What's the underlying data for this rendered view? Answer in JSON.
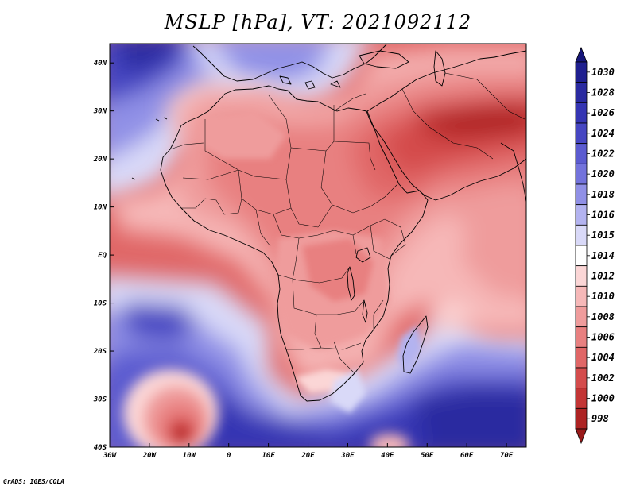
{
  "title": "MSLP [hPa], VT: 2021092112",
  "credit": "GrADS: IGES/COLA",
  "map": {
    "variable": "Mean sea level pressure",
    "units": "hPa",
    "valid_time": "2021092112",
    "lon_range": [
      -30,
      75
    ],
    "lat_range": [
      -40,
      44
    ],
    "lon_ticks": [
      {
        "value": -30,
        "label": "30W"
      },
      {
        "value": -20,
        "label": "20W"
      },
      {
        "value": -10,
        "label": "10W"
      },
      {
        "value": 0,
        "label": "0"
      },
      {
        "value": 10,
        "label": "10E"
      },
      {
        "value": 20,
        "label": "20E"
      },
      {
        "value": 30,
        "label": "30E"
      },
      {
        "value": 40,
        "label": "40E"
      },
      {
        "value": 50,
        "label": "50E"
      },
      {
        "value": 60,
        "label": "60E"
      },
      {
        "value": 70,
        "label": "70E"
      }
    ],
    "lat_ticks": [
      {
        "value": 40,
        "label": "40N"
      },
      {
        "value": 30,
        "label": "30N"
      },
      {
        "value": 20,
        "label": "20N"
      },
      {
        "value": 10,
        "label": "10N"
      },
      {
        "value": 0,
        "label": "EQ"
      },
      {
        "value": -10,
        "label": "10S"
      },
      {
        "value": -20,
        "label": "20S"
      },
      {
        "value": -30,
        "label": "30S"
      },
      {
        "value": -40,
        "label": "40S"
      }
    ]
  },
  "colorbar": {
    "levels": [
      {
        "label": "1030",
        "color": "#1f1f8f"
      },
      {
        "label": "1028",
        "color": "#2a2aa0"
      },
      {
        "label": "1026",
        "color": "#3535b3"
      },
      {
        "label": "1024",
        "color": "#4646c2"
      },
      {
        "label": "1022",
        "color": "#5b5bd0"
      },
      {
        "label": "1020",
        "color": "#7373dc"
      },
      {
        "label": "1018",
        "color": "#9090e6"
      },
      {
        "label": "1016",
        "color": "#b3b3f0"
      },
      {
        "label": "1015",
        "color": "#d9d9f8"
      },
      {
        "label": "1014",
        "color": "#ffffff"
      },
      {
        "label": "1012",
        "color": "#fbd6d6"
      },
      {
        "label": "1010",
        "color": "#f6b8b8"
      },
      {
        "label": "1008",
        "color": "#ef9c9c"
      },
      {
        "label": "1006",
        "color": "#e88080"
      },
      {
        "label": "1004",
        "color": "#e06666"
      },
      {
        "label": "1002",
        "color": "#d44c4c"
      },
      {
        "label": "1000",
        "color": "#c33535"
      },
      {
        "label": "998",
        "color": "#ad2323"
      }
    ],
    "top_arrow_color": "#16167a",
    "bottom_arrow_color": "#991a1a"
  }
}
